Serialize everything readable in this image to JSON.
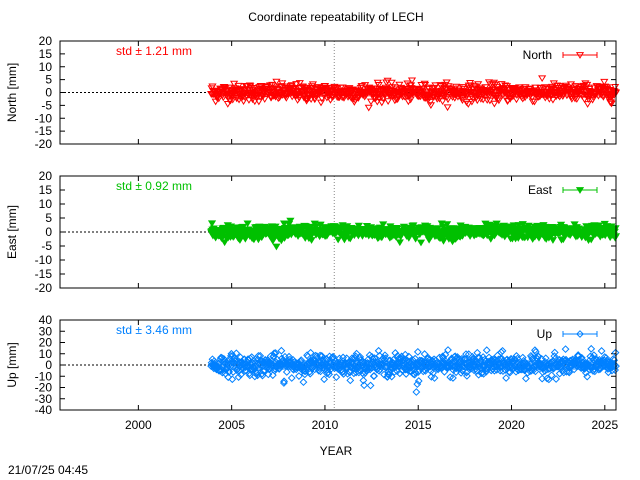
{
  "title": "Coordinate repeatability of LECH",
  "xlabel": "YEAR",
  "timestamp": "21/07/25 04:45",
  "chart_data": [
    {
      "type": "scatter",
      "name": "North",
      "ylabel": "North [mm]",
      "std_text": "std ± 1.21 mm",
      "color": "#ff0000",
      "marker": "triangle-down-open",
      "ylim": [
        -20,
        20
      ],
      "yticks": [
        -20,
        -15,
        -10,
        -5,
        0,
        5,
        10,
        15,
        20
      ],
      "xlim": [
        1995.8,
        2025.6
      ],
      "xticks": [
        2000,
        2005,
        2010,
        2015,
        2020,
        2025
      ],
      "data_start": 2003.9,
      "data_end": 2025.6,
      "std": 1.21,
      "reference_line_x": 2010.5,
      "legend_position": "top-right"
    },
    {
      "type": "scatter",
      "name": "East",
      "ylabel": "East [mm]",
      "std_text": "std ± 0.92 mm",
      "color": "#00c000",
      "marker": "triangle-down-filled",
      "ylim": [
        -20,
        20
      ],
      "yticks": [
        -20,
        -15,
        -10,
        -5,
        0,
        5,
        10,
        15,
        20
      ],
      "xlim": [
        1995.8,
        2025.6
      ],
      "xticks": [
        2000,
        2005,
        2010,
        2015,
        2020,
        2025
      ],
      "data_start": 2003.9,
      "data_end": 2025.6,
      "std": 0.92,
      "reference_line_x": 2010.5,
      "legend_position": "top-right"
    },
    {
      "type": "scatter",
      "name": "Up",
      "ylabel": "Up [mm]",
      "std_text": "std ± 3.46 mm",
      "color": "#0080ff",
      "marker": "diamond-open",
      "ylim": [
        -40,
        40
      ],
      "yticks": [
        -40,
        -30,
        -20,
        -10,
        0,
        10,
        20,
        30,
        40
      ],
      "xlim": [
        1995.8,
        2025.6
      ],
      "xticks": [
        2000,
        2005,
        2010,
        2015,
        2020,
        2025
      ],
      "data_start": 2003.9,
      "data_end": 2025.6,
      "std": 3.46,
      "reference_line_x": 2010.5,
      "legend_position": "top-right",
      "outliers": [
        [
          2007.8,
          -16
        ],
        [
          2012.1,
          -18
        ],
        [
          2014.9,
          -24
        ],
        [
          2014.95,
          -17
        ]
      ]
    }
  ]
}
